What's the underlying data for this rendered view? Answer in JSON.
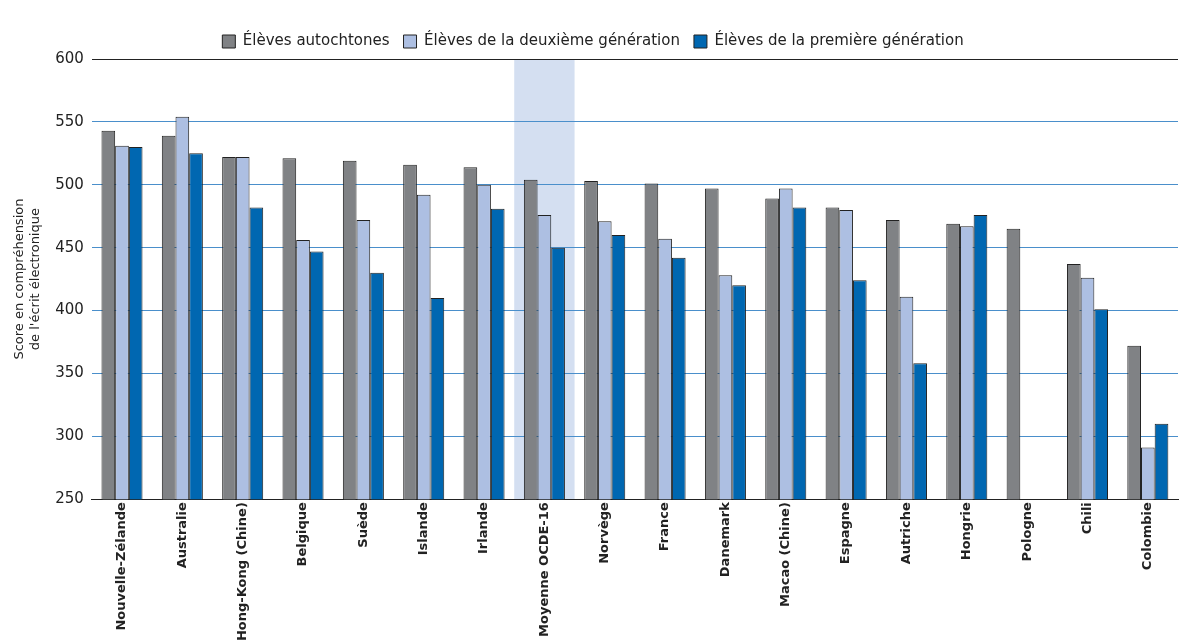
{
  "chart_data": {
    "type": "bar",
    "ylabel": "Score en compréhension\nde l'écrit électronique",
    "categories": [
      "Nouvelle-Zélande",
      "Australie",
      "Hong-Kong (Chine)",
      "Belgique",
      "Suède",
      "Islande",
      "Irlande",
      "Moyenne OCDE-16",
      "Norvège",
      "France",
      "Danemark",
      "Macao (Chine)",
      "Espagne",
      "Autriche",
      "Hongrie",
      "Pologne",
      "Chili",
      "Colombie"
    ],
    "series": [
      {
        "name": "Élèves autochtones",
        "color": "#808285",
        "values": [
          543,
          539,
          522,
          521,
          519,
          516,
          514,
          504,
          503,
          501,
          497,
          489,
          482,
          472,
          469,
          465,
          437,
          372
        ]
      },
      {
        "name": "Élèves de la deuxième génération",
        "color": "#adbfe2",
        "values": [
          531,
          554,
          522,
          456,
          472,
          492,
          500,
          476,
          471,
          457,
          428,
          497,
          480,
          411,
          467,
          null,
          426,
          291
        ]
      },
      {
        "name": "Élèves de la première génération",
        "color": "#0067b1",
        "values": [
          530,
          525,
          482,
          447,
          430,
          410,
          481,
          450,
          460,
          442,
          420,
          482,
          424,
          358,
          476,
          null,
          401,
          310
        ]
      }
    ],
    "ylim": [
      250,
      600
    ],
    "yticks": [
      250,
      300,
      350,
      400,
      450,
      500,
      550,
      600
    ],
    "grid": "y",
    "legend": "top",
    "bands": [
      {
        "axis": "x",
        "from": "Moyenne OCDE-16",
        "to": "Moyenne OCDE-16",
        "color": "#d4dff1"
      }
    ]
  }
}
